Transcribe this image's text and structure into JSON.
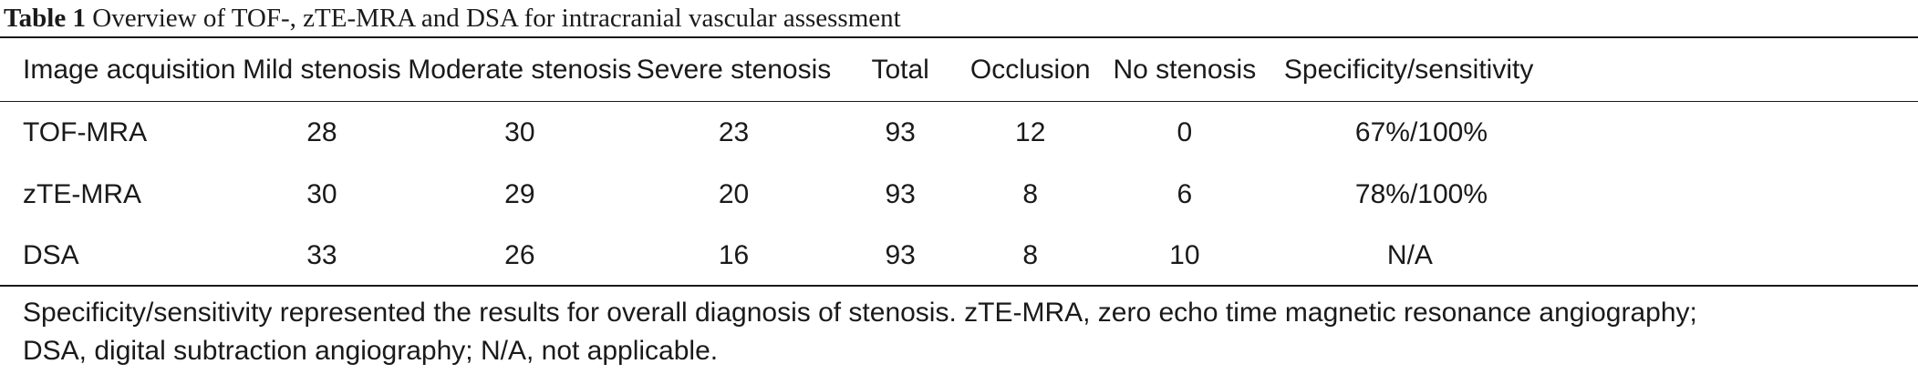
{
  "caption": {
    "label": "Table 1",
    "text": "Overview of TOF-, zTE-MRA and DSA for intracranial vascular assessment"
  },
  "table": {
    "columns": [
      "Image acquisition",
      "Mild stenosis",
      "Moderate stenosis",
      "Severe stenosis",
      "Total",
      "Occlusion",
      "No stenosis",
      "Specificity/sensitivity"
    ],
    "rows": [
      [
        "TOF-MRA",
        "28",
        "30",
        "23",
        "93",
        "12",
        "0",
        "67%/100%"
      ],
      [
        "zTE-MRA",
        "30",
        "29",
        "20",
        "93",
        "8",
        "6",
        "78%/100%"
      ],
      [
        "DSA",
        "33",
        "26",
        "16",
        "93",
        "8",
        "10",
        "N/A"
      ]
    ]
  },
  "footnote": {
    "line1": "Specificity/sensitivity represented the results for overall diagnosis of stenosis. zTE-MRA, zero echo time magnetic resonance angiography;",
    "line2": "DSA, digital subtraction angiography; N/A, not applicable."
  }
}
